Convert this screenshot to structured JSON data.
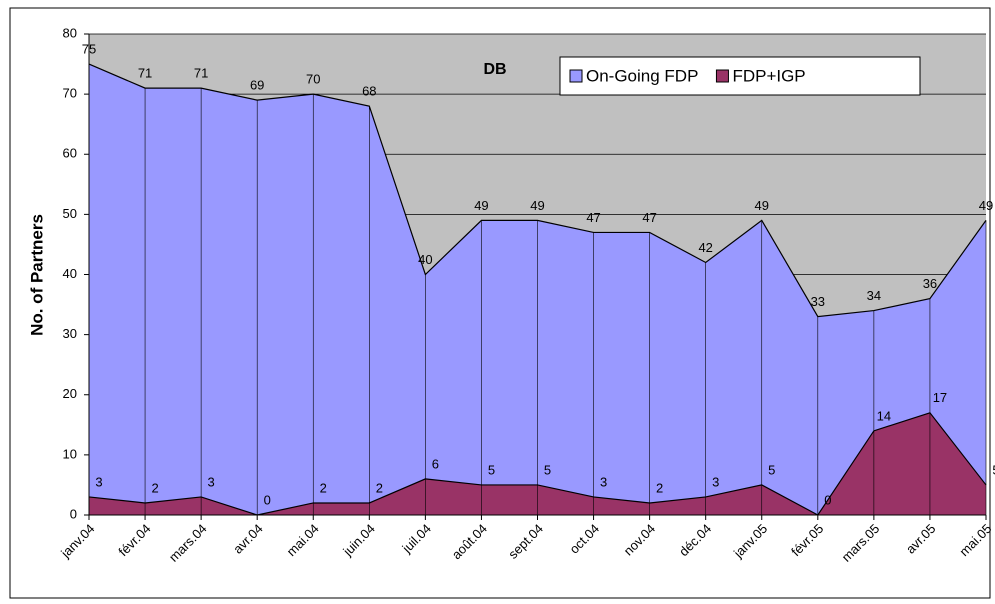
{
  "chart_data": {
    "type": "area",
    "title": "DB",
    "y_label": "No. of Partners",
    "categories": [
      "janv.04",
      "févr.04",
      "mars.04",
      "avr.04",
      "mai.04",
      "juin.04",
      "juil.04",
      "août.04",
      "sept.04",
      "oct.04",
      "nov.04",
      "déc.04",
      "janv.05",
      "févr.05",
      "mars.05",
      "avr.05",
      "mai.05"
    ],
    "series": [
      {
        "name": "On-Going FDP",
        "color": "#9999ff",
        "values": [
          75,
          71,
          71,
          69,
          70,
          68,
          40,
          49,
          49,
          47,
          47,
          42,
          49,
          33,
          34,
          36,
          49
        ]
      },
      {
        "name": "FDP+IGP",
        "color": "#993366",
        "values": [
          3,
          2,
          3,
          0,
          2,
          2,
          6,
          5,
          5,
          3,
          2,
          3,
          5,
          0,
          14,
          17,
          5
        ]
      }
    ],
    "ylim": [
      0,
      80
    ],
    "yticks": [
      0,
      10,
      20,
      30,
      40,
      50,
      60,
      70,
      80
    ],
    "grid": true,
    "legend": "top-right"
  }
}
